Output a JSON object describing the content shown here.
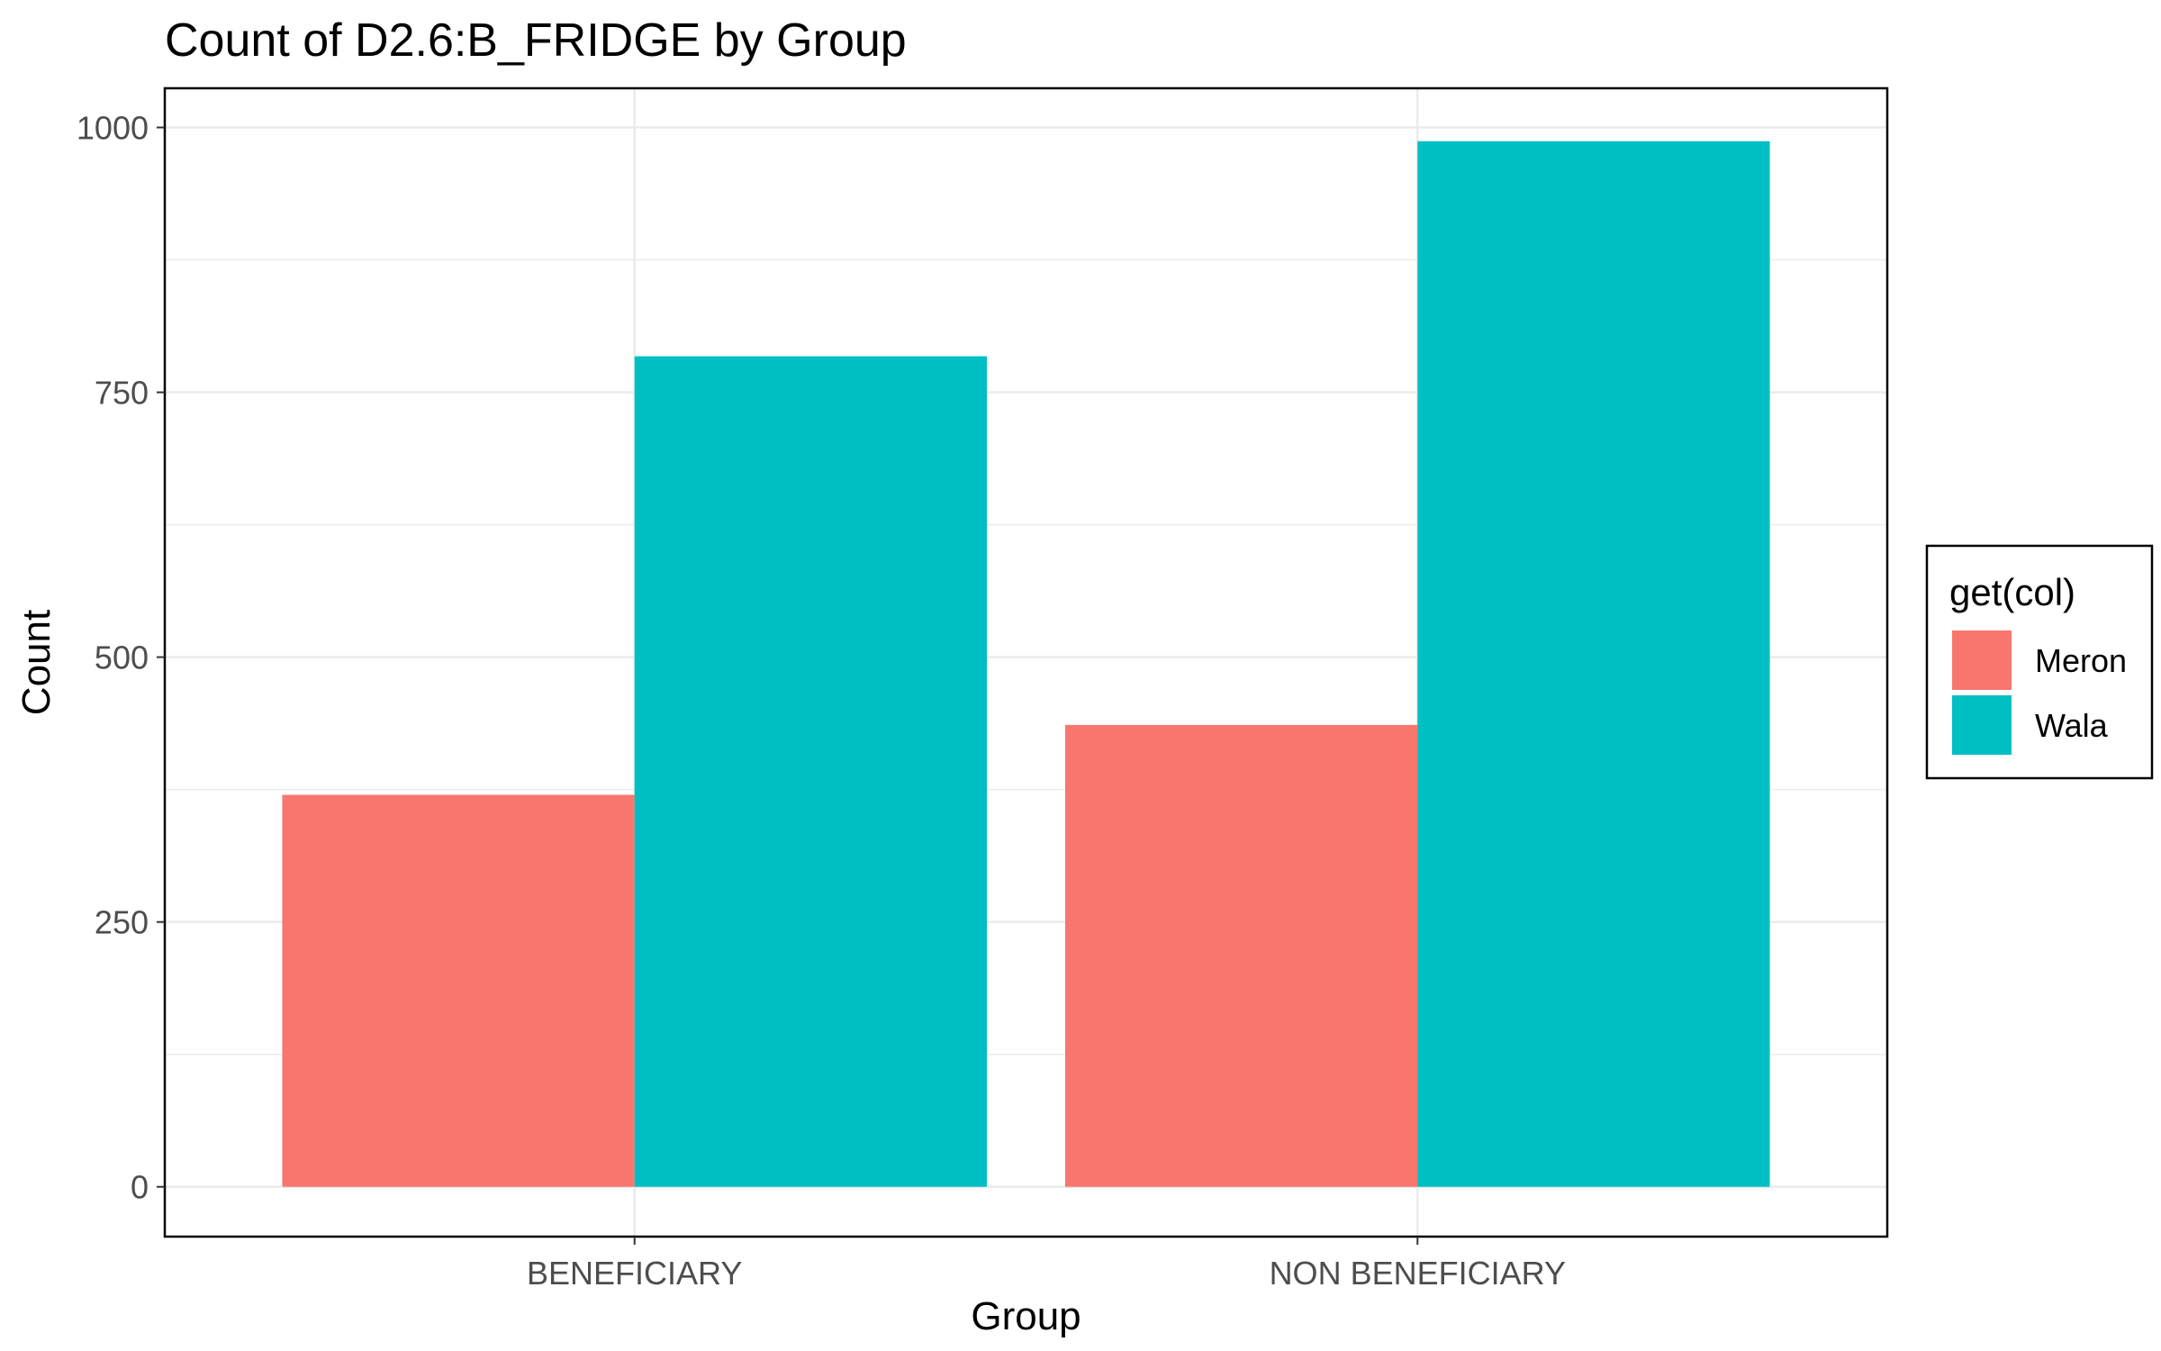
{
  "chart_data": {
    "type": "bar",
    "title": "Count of D2.6:B_FRIDGE by Group",
    "xlabel": "Group",
    "ylabel": "Count",
    "categories": [
      "BENEFICIARY",
      "NON BENEFICIARY"
    ],
    "series": [
      {
        "name": "Meron",
        "values": [
          370,
          436
        ],
        "color": "#F8766D"
      },
      {
        "name": "Wala",
        "values": [
          784,
          987
        ],
        "color": "#00BFC4"
      }
    ],
    "ylim": [
      -47,
      1037
    ],
    "yticks": [
      0,
      250,
      500,
      750,
      1000
    ],
    "ytick_labels": [
      "0",
      "250",
      "500",
      "750",
      "1000"
    ],
    "grid": true,
    "legend": {
      "title": "get(col)",
      "placement": "right"
    }
  }
}
